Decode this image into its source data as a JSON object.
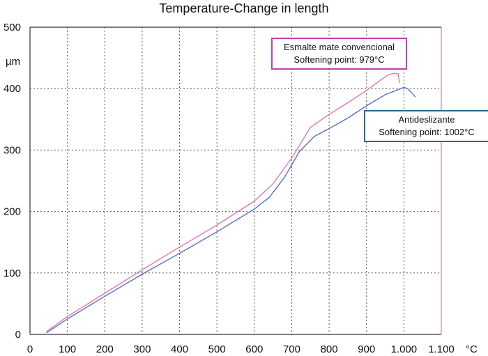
{
  "chart_data": {
    "type": "line",
    "title": "Temperature-Change in length",
    "xlabel": "°C",
    "ylabel": "µm",
    "xlim": [
      0,
      1100
    ],
    "ylim": [
      0,
      500
    ],
    "x_ticks": [
      "0",
      "100",
      "200",
      "300",
      "400",
      "500",
      "600",
      "700",
      "800",
      "900",
      "1.000",
      "1.100"
    ],
    "y_ticks": [
      "0",
      "100",
      "200",
      "300",
      "400",
      "500"
    ],
    "grid": true,
    "series": [
      {
        "name": "Esmalte mate convencional",
        "color": "#e07ab0",
        "points": [
          [
            45,
            5
          ],
          [
            100,
            29
          ],
          [
            200,
            67
          ],
          [
            300,
            105
          ],
          [
            400,
            142
          ],
          [
            500,
            178
          ],
          [
            600,
            217
          ],
          [
            650,
            245
          ],
          [
            700,
            287
          ],
          [
            750,
            337
          ],
          [
            800,
            358
          ],
          [
            850,
            377
          ],
          [
            900,
            397
          ],
          [
            940,
            415
          ],
          [
            960,
            423
          ],
          [
            975,
            425
          ],
          [
            985,
            424
          ],
          [
            988,
            410
          ]
        ]
      },
      {
        "name": "Antideslizante",
        "color": "#5a6ec8",
        "points": [
          [
            45,
            3
          ],
          [
            100,
            25
          ],
          [
            200,
            62
          ],
          [
            300,
            98
          ],
          [
            400,
            132
          ],
          [
            500,
            167
          ],
          [
            600,
            204
          ],
          [
            640,
            223
          ],
          [
            680,
            255
          ],
          [
            720,
            297
          ],
          [
            760,
            322
          ],
          [
            800,
            335
          ],
          [
            850,
            352
          ],
          [
            900,
            372
          ],
          [
            950,
            390
          ],
          [
            1000,
            402
          ],
          [
            1010,
            400
          ],
          [
            1030,
            387
          ]
        ]
      }
    ],
    "annotations": [
      {
        "lines": [
          "Esmalte mate convencional",
          "Softening point: 979°C"
        ],
        "color": "#c040b0"
      },
      {
        "lines": [
          "Antideslizante",
          "Softening point: 1002°C"
        ],
        "color": "#2a6a8a"
      }
    ]
  }
}
